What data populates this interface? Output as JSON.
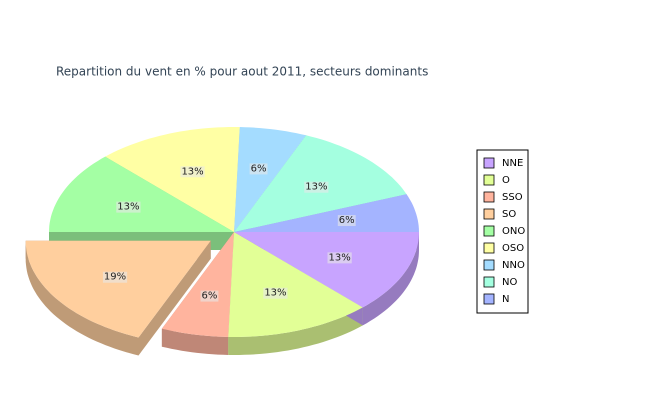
{
  "chart_data": {
    "type": "pie",
    "title": "Repartition du vent en % pour aout 2011, secteurs dominants",
    "categories": [
      "NNE",
      "O",
      "SSO",
      "SO",
      "ONO",
      "OSO",
      "NNO",
      "NO",
      "N"
    ],
    "values": [
      13,
      13,
      6,
      19,
      13,
      13,
      6,
      13,
      6
    ],
    "value_labels": [
      "13%",
      "13%",
      "6%",
      "19%",
      "13%",
      "13%",
      "6%",
      "13%",
      "6%"
    ],
    "colors": [
      "#c8a4ff",
      "#e2ff96",
      "#ffb49e",
      "#ffcf9e",
      "#a4ffa4",
      "#ffffa4",
      "#a4dcff",
      "#a4ffe0",
      "#a4b4ff"
    ],
    "explode": [
      false,
      false,
      false,
      true,
      false,
      false,
      false,
      false,
      false
    ],
    "legend": "right"
  }
}
